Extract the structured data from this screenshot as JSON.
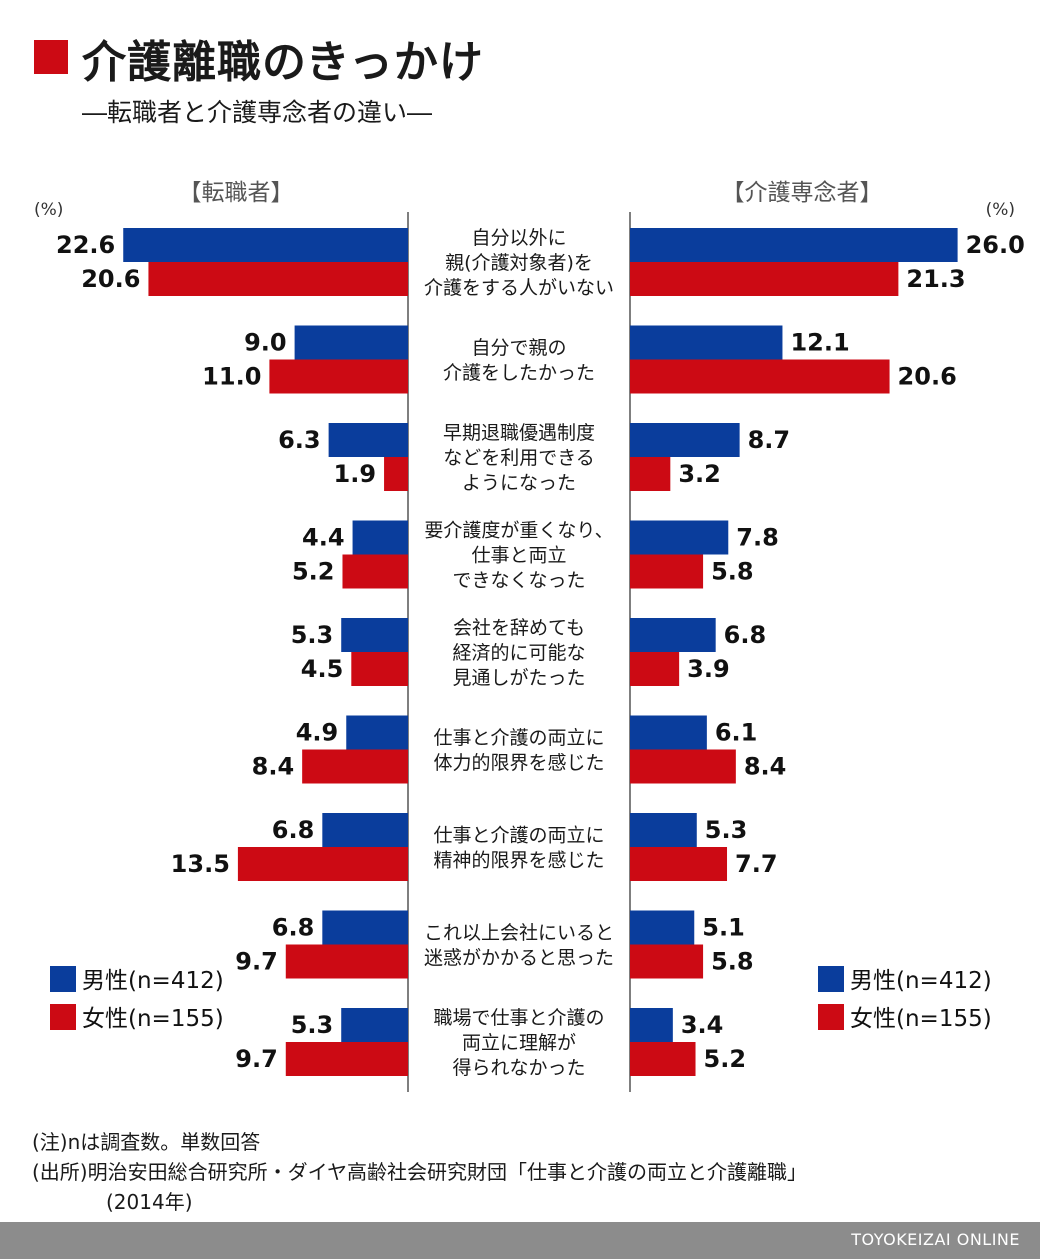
{
  "title": "介護離職のきっかけ",
  "subtitle": "―転職者と介護専念者の違い―",
  "chart_data": {
    "type": "bar",
    "orientation": "horizontal-butterfly",
    "unit": "(%)",
    "panels": [
      "【転職者】",
      "【介護専念者】"
    ],
    "categories": [
      [
        "自分以外に",
        "親(介護対象者)を",
        "介護をする人がいない"
      ],
      [
        "自分で親の",
        "介護をしたかった"
      ],
      [
        "早期退職優遇制度",
        "などを利用できる",
        "ようになった"
      ],
      [
        "要介護度が重くなり、",
        "仕事と両立",
        "できなくなった"
      ],
      [
        "会社を辞めても",
        "経済的に可能な",
        "見通しがたった"
      ],
      [
        "仕事と介護の両立に",
        "体力的限界を感じた"
      ],
      [
        "仕事と介護の両立に",
        "精神的限界を感じた"
      ],
      [
        "これ以上会社にいると",
        "迷惑がかかると思った"
      ],
      [
        "職場で仕事と介護の",
        "両立に理解が",
        "得られなかった"
      ]
    ],
    "series": [
      {
        "name": "男性(n=412)",
        "panel": "【転職者】",
        "color": "#0a3d9c",
        "values": [
          22.6,
          9.0,
          6.3,
          4.4,
          5.3,
          4.9,
          6.8,
          6.8,
          5.3
        ]
      },
      {
        "name": "女性(n=155)",
        "panel": "【転職者】",
        "color": "#cc0a14",
        "values": [
          20.6,
          11.0,
          1.9,
          5.2,
          4.5,
          8.4,
          13.5,
          9.7,
          9.7
        ]
      },
      {
        "name": "男性(n=412)",
        "panel": "【介護専念者】",
        "color": "#0a3d9c",
        "values": [
          26.0,
          12.1,
          8.7,
          7.8,
          6.8,
          6.1,
          5.3,
          5.1,
          3.4
        ]
      },
      {
        "name": "女性(n=155)",
        "panel": "【介護専念者】",
        "color": "#cc0a14",
        "values": [
          21.3,
          20.6,
          3.2,
          5.8,
          3.9,
          8.4,
          7.7,
          5.8,
          5.2
        ]
      }
    ],
    "xlim": [
      0,
      26
    ],
    "legend": {
      "position": "bottom-left and bottom-right",
      "entries": [
        "男性(n=412)",
        "女性(n=155)"
      ]
    }
  },
  "notes": [
    "(注)nは調査数。単数回答",
    "(出所)明治安田総合研究所・ダイヤ高齢社会研究財団「仕事と介護の両立と介護離職」",
    "(2014年)"
  ],
  "footer": "TOYOKEIZAI ONLINE"
}
